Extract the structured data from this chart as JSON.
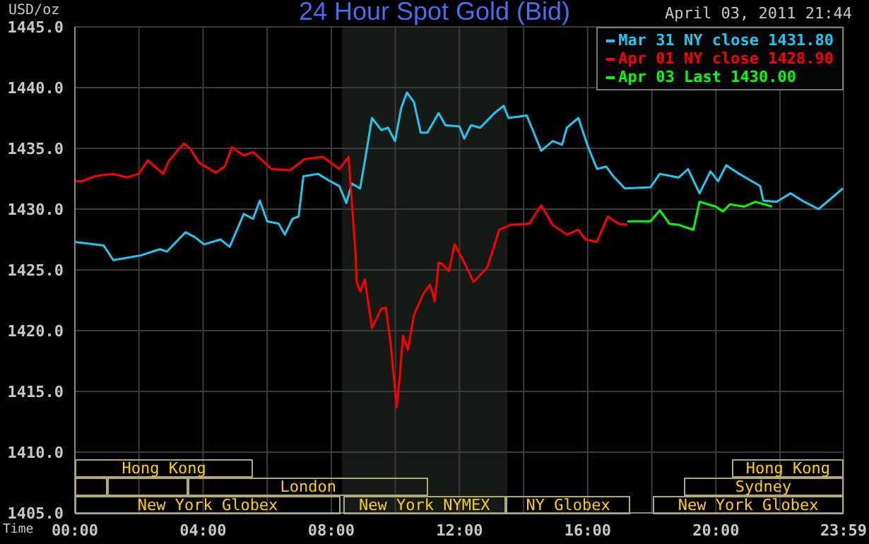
{
  "chart_data": {
    "type": "line",
    "title": "24 Hour Spot Gold (Bid)",
    "subtitle": "April 03, 2011 21:44",
    "ylabel": "USD/oz",
    "xlabel": "Time",
    "annotations": [
      "Hong Kong",
      "London",
      "New York Globex",
      "New York NYMEX",
      "NY Globex",
      "Sydney",
      "Hong Kong",
      "New York Globex"
    ],
    "series": [
      {
        "name": "Mar 31 NY close 1431.80",
        "color": "#1ec8f0",
        "x": [
          0,
          0.9,
          1.2,
          2.07,
          2.65,
          2.87,
          3.45,
          3.74,
          4.03,
          4.54,
          4.83,
          5.27,
          5.56,
          5.77,
          6.0,
          6.36,
          6.55,
          6.79,
          6.98,
          7.13,
          7.59,
          7.96,
          8.25,
          8.47,
          8.64,
          8.9,
          9.05,
          9.27,
          9.56,
          9.77,
          9.99,
          10.18,
          10.36,
          10.58,
          10.79,
          11.0,
          11.35,
          11.56,
          12.0,
          12.15,
          12.36,
          12.65,
          13.09,
          13.38,
          13.53,
          14.1,
          14.55,
          14.91,
          15.2,
          15.35,
          15.71,
          16.0,
          16.29,
          16.58,
          16.8,
          17.16,
          17.96,
          18.25,
          18.84,
          19.13,
          19.49,
          19.83,
          20.07,
          20.32,
          20.73,
          21.38,
          21.48,
          21.89,
          22.33,
          22.76,
          23.2,
          23.56,
          23.96
        ],
        "values": [
          1427.3,
          1427.0,
          1425.8,
          1426.2,
          1426.7,
          1426.5,
          1428.1,
          1427.7,
          1427.1,
          1427.5,
          1426.9,
          1429.6,
          1429.2,
          1430.7,
          1429.0,
          1428.8,
          1427.9,
          1429.2,
          1429.4,
          1432.7,
          1432.9,
          1432.3,
          1431.9,
          1430.5,
          1432.1,
          1431.7,
          1434.0,
          1437.5,
          1436.5,
          1436.7,
          1435.6,
          1438.3,
          1439.6,
          1438.8,
          1436.3,
          1436.3,
          1437.9,
          1436.9,
          1436.8,
          1435.8,
          1436.9,
          1436.7,
          1437.9,
          1438.5,
          1437.5,
          1437.7,
          1434.8,
          1435.6,
          1435.3,
          1436.7,
          1437.5,
          1435.2,
          1433.3,
          1433.5,
          1432.7,
          1431.7,
          1431.8,
          1432.9,
          1432.6,
          1433.3,
          1431.3,
          1433.1,
          1432.3,
          1433.6,
          1432.9,
          1431.9,
          1430.7,
          1430.6,
          1431.3,
          1430.6,
          1430.0,
          1430.8,
          1431.7
        ]
      },
      {
        "name": "Apr 01 NY close 1428.90",
        "color": "#ff0000",
        "x": [
          0,
          0.25,
          0.61,
          1.19,
          1.63,
          1.99,
          2.28,
          2.5,
          2.76,
          2.94,
          3.4,
          3.59,
          3.88,
          4.39,
          4.68,
          4.9,
          5.27,
          5.56,
          6.14,
          6.72,
          7.16,
          7.74,
          8.25,
          8.54,
          8.61,
          8.76,
          8.79,
          8.9,
          9.05,
          9.27,
          9.56,
          9.7,
          9.85,
          10.04,
          10.14,
          10.24,
          10.39,
          10.58,
          10.87,
          11.08,
          11.23,
          11.35,
          11.45,
          11.67,
          11.85,
          12.15,
          12.44,
          12.87,
          13.24,
          13.6,
          14.18,
          14.55,
          14.91,
          15.35,
          15.71,
          15.93,
          16.29,
          16.63,
          16.95,
          17.24
        ],
        "values": [
          1432.3,
          1432.3,
          1432.7,
          1432.9,
          1432.6,
          1432.9,
          1434.0,
          1433.5,
          1432.9,
          1434.0,
          1435.4,
          1435.0,
          1433.8,
          1433.0,
          1433.5,
          1435.1,
          1434.4,
          1434.7,
          1433.3,
          1433.2,
          1434.1,
          1434.3,
          1433.3,
          1434.3,
          1431.7,
          1426.3,
          1424.0,
          1423.2,
          1424.2,
          1420.2,
          1421.8,
          1421.9,
          1419.0,
          1413.7,
          1416.3,
          1419.6,
          1418.4,
          1421.3,
          1423.0,
          1423.8,
          1422.4,
          1425.6,
          1425.5,
          1424.9,
          1427.1,
          1425.6,
          1424.0,
          1425.2,
          1428.3,
          1428.7,
          1428.8,
          1430.3,
          1428.7,
          1427.9,
          1428.3,
          1427.5,
          1427.3,
          1429.4,
          1428.8,
          1428.7
        ]
      },
      {
        "name": "Apr 03 Last 1430.00",
        "color": "#00ff00",
        "x": [
          17.24,
          17.96,
          18.25,
          18.55,
          18.84,
          19.3,
          19.49,
          20.0,
          20.22,
          20.44,
          20.87,
          21.24,
          21.75
        ],
        "values": [
          1429.0,
          1429.0,
          1429.9,
          1428.8,
          1428.7,
          1428.3,
          1430.6,
          1430.2,
          1429.8,
          1430.4,
          1430.2,
          1430.6,
          1430.2
        ]
      }
    ],
    "xlim": [
      0,
      23.983
    ],
    "xticks": [
      {
        "value": 0,
        "label": "00:00"
      },
      {
        "value": 2,
        "label": null
      },
      {
        "value": 4,
        "label": "04:00"
      },
      {
        "value": 6,
        "label": null
      },
      {
        "value": 8,
        "label": "08:00"
      },
      {
        "value": 10,
        "label": null
      },
      {
        "value": 12,
        "label": "12:00"
      },
      {
        "value": 14,
        "label": null
      },
      {
        "value": 16,
        "label": "16:00"
      },
      {
        "value": 18,
        "label": null
      },
      {
        "value": 20,
        "label": "20:00"
      },
      {
        "value": 22,
        "label": null
      },
      {
        "value": 23.983,
        "label": "23:59"
      }
    ],
    "ylim": [
      1405,
      1445
    ],
    "yticks": [
      {
        "value": 1405,
        "label": "1405.0"
      },
      {
        "value": 1410,
        "label": "1410.0"
      },
      {
        "value": 1415,
        "label": "1415.0"
      },
      {
        "value": 1420,
        "label": "1420.0"
      },
      {
        "value": 1425,
        "label": "1425.0"
      },
      {
        "value": 1430,
        "label": "1430.0"
      },
      {
        "value": 1435,
        "label": "1435.0"
      },
      {
        "value": 1440,
        "label": "1440.0"
      },
      {
        "value": 1445,
        "label": "1445.0"
      }
    ],
    "bands": [
      {
        "axis": "x",
        "from": 8.33,
        "to": 13.5,
        "color": "#161a16"
      }
    ],
    "grid": true,
    "legend": "top right",
    "marker": "none",
    "line_style": "solid"
  }
}
